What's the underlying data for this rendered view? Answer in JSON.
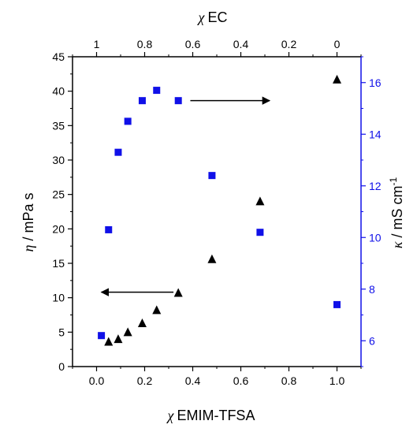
{
  "chart_data": {
    "type": "scatter",
    "colors": {
      "black": "#000000",
      "blue": "#1010e8",
      "right_axis": "#1010e8"
    },
    "bottom_axis": {
      "label_symbol": "χ",
      "label_text": "EMIM-TFSA",
      "range": [
        -0.1,
        1.1
      ],
      "ticks": [
        0.0,
        0.2,
        0.4,
        0.6,
        0.8,
        1.0
      ],
      "tick_labels": [
        "0.0",
        "0.2",
        "0.4",
        "0.6",
        "0.8",
        "1.0"
      ]
    },
    "top_axis": {
      "label_symbol": "χ",
      "label_text": "EC",
      "range": [
        1.1,
        -0.1
      ],
      "ticks": [
        1.0,
        0.8,
        0.6,
        0.4,
        0.2,
        0.0
      ],
      "tick_labels": [
        "1",
        "0.8",
        "0.6",
        "0.4",
        "0.2",
        "0"
      ]
    },
    "left_axis": {
      "label_symbol": "η",
      "label_text": " / mPa s",
      "range": [
        0,
        45
      ],
      "ticks": [
        0,
        5,
        10,
        15,
        20,
        25,
        30,
        35,
        40,
        45
      ],
      "tick_labels": [
        "0",
        "5",
        "10",
        "15",
        "20",
        "25",
        "30",
        "35",
        "40",
        "45"
      ]
    },
    "right_axis": {
      "label_symbol": "κ",
      "label_text": " / mS cm",
      "label_superscript": "-1",
      "range": [
        5,
        17
      ],
      "ticks": [
        6,
        8,
        10,
        12,
        14,
        16
      ],
      "tick_labels": [
        "6",
        "8",
        "10",
        "12",
        "14",
        "16"
      ]
    },
    "series": [
      {
        "marker": "triangle",
        "axis": "left",
        "color": "#000000",
        "x": [
          0.05,
          0.09,
          0.13,
          0.19,
          0.25,
          0.34,
          0.48,
          0.68,
          1.0
        ],
        "y": [
          3.6,
          4.0,
          5.0,
          6.3,
          8.2,
          10.7,
          15.6,
          24.0,
          41.7
        ]
      },
      {
        "marker": "square",
        "axis": "right",
        "color": "#1010e8",
        "x": [
          0.02,
          0.05,
          0.09,
          0.13,
          0.19,
          0.25,
          0.34,
          0.48,
          0.68,
          1.0
        ],
        "y": [
          6.2,
          10.3,
          13.3,
          14.5,
          15.3,
          15.7,
          15.3,
          12.4,
          10.2,
          7.4
        ]
      }
    ],
    "annotations": [
      {
        "type": "arrow",
        "direction": "left",
        "axis": "left",
        "x_from": 0.32,
        "x_to": 0.02,
        "y": 10.8
      },
      {
        "type": "arrow",
        "direction": "right",
        "axis": "right",
        "x_from": 0.39,
        "x_to": 0.72,
        "y": 15.3
      }
    ],
    "grid": false
  }
}
